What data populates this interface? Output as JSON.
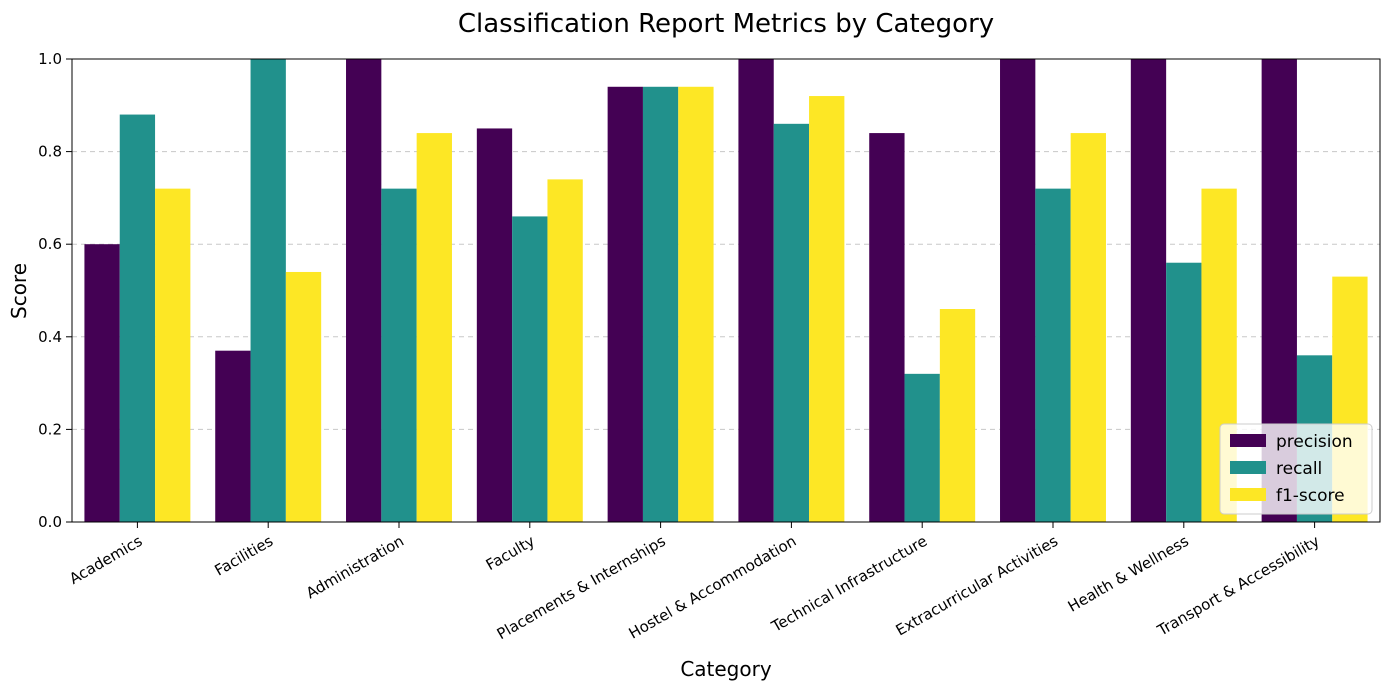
{
  "chart_data": {
    "type": "bar",
    "title": "Classification Report Metrics by Category",
    "xlabel": "Category",
    "ylabel": "Score",
    "ylim": [
      0,
      1.0
    ],
    "yticks": [
      "0.0",
      "0.2",
      "0.4",
      "0.6",
      "0.8",
      "1.0"
    ],
    "grid": "y dashed",
    "legend_position": "lower-right",
    "categories": [
      "Academics",
      "Facilities",
      "Administration",
      "Faculty",
      "Placements & Internships",
      "Hostel & Accommodation",
      "Technical Infrastructure",
      "Extracurricular Activities",
      "Health & Wellness",
      "Transport & Accessibility"
    ],
    "series": [
      {
        "name": "precision",
        "color": "#440154",
        "values": [
          0.6,
          0.37,
          1.0,
          0.85,
          0.94,
          1.0,
          0.84,
          1.0,
          1.0,
          1.0
        ]
      },
      {
        "name": "recall",
        "color": "#21918c",
        "values": [
          0.88,
          1.0,
          0.72,
          0.66,
          0.94,
          0.86,
          0.32,
          0.72,
          0.56,
          0.36
        ]
      },
      {
        "name": "f1-score",
        "color": "#fde725",
        "values": [
          0.72,
          0.54,
          0.84,
          0.74,
          0.94,
          0.92,
          0.46,
          0.84,
          0.72,
          0.53
        ]
      }
    ]
  }
}
